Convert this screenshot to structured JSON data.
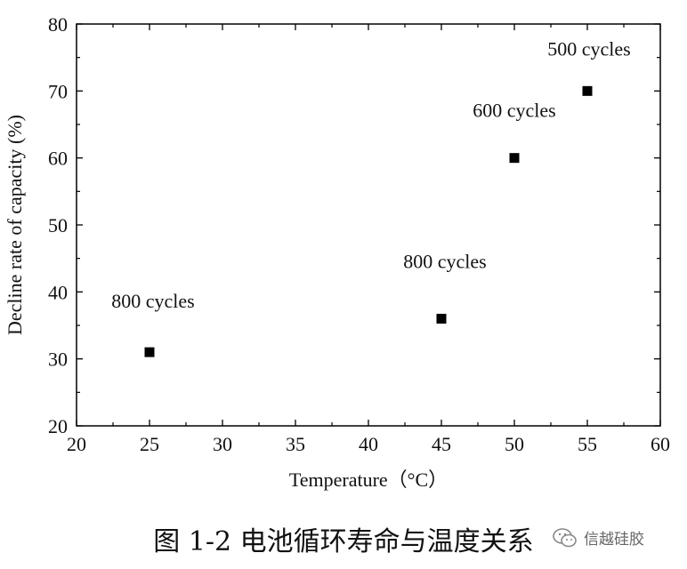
{
  "chart_data": {
    "type": "scatter",
    "title": "",
    "xlabel": "Temperature（°C）",
    "ylabel": "Decline rate of capacity (%)",
    "xlim": [
      20,
      60
    ],
    "ylim": [
      20,
      80
    ],
    "xticks": [
      20,
      25,
      30,
      35,
      40,
      45,
      50,
      55,
      60
    ],
    "yticks": [
      20,
      30,
      40,
      50,
      60,
      70,
      80
    ],
    "grid": false,
    "marker_color": "#000000",
    "points": [
      {
        "x": 25,
        "y": 31,
        "label": "800 cycles"
      },
      {
        "x": 45,
        "y": 36,
        "label": "800 cycles"
      },
      {
        "x": 50,
        "y": 60,
        "label": "600 cycles"
      },
      {
        "x": 55,
        "y": 70,
        "label": "500 cycles"
      }
    ]
  },
  "caption": "图 1-2 电池循环寿命与温度关系",
  "watermark": {
    "text": "信越硅胶",
    "icon": "wechat-logo-icon"
  }
}
